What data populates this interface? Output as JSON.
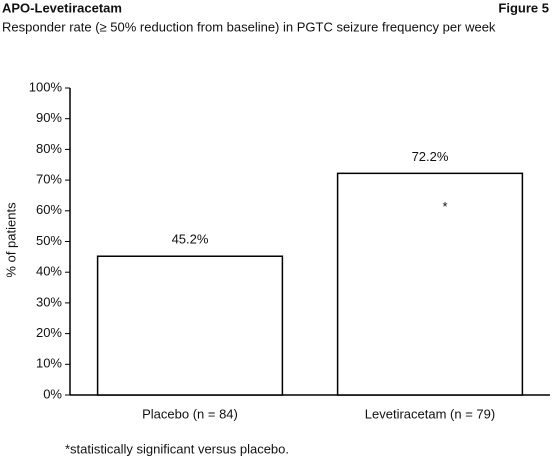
{
  "chart_data": {
    "type": "bar",
    "header_left": "APO-Levetiracetam",
    "header_right": "Figure 5",
    "title": "Responder rate (≥ 50% reduction from baseline) in PGTC seizure frequency per week",
    "y_label": "% of patients",
    "categories": [
      "Placebo (n = 84)",
      "Levetiracetam (n = 79)"
    ],
    "values": [
      45.2,
      72.2
    ],
    "value_labels": [
      "45.2%",
      "72.2%"
    ],
    "color": "#ffffff",
    "ylim": [
      0,
      100
    ],
    "yticks": [
      {
        "value": 0,
        "label": "0%"
      },
      {
        "value": 10,
        "label": "10%"
      },
      {
        "value": 20,
        "label": "20%"
      },
      {
        "value": 30,
        "label": "30%"
      },
      {
        "value": 40,
        "label": "40%"
      },
      {
        "value": 50,
        "label": "50%"
      },
      {
        "value": 60,
        "label": "60%"
      },
      {
        "value": 70,
        "label": "70%"
      },
      {
        "value": 80,
        "label": "80%"
      },
      {
        "value": 90,
        "label": "90%"
      },
      {
        "value": 100,
        "label": "100%"
      }
    ],
    "grid": false,
    "annotation": "*",
    "footnote": "*statistically significant versus placebo."
  }
}
